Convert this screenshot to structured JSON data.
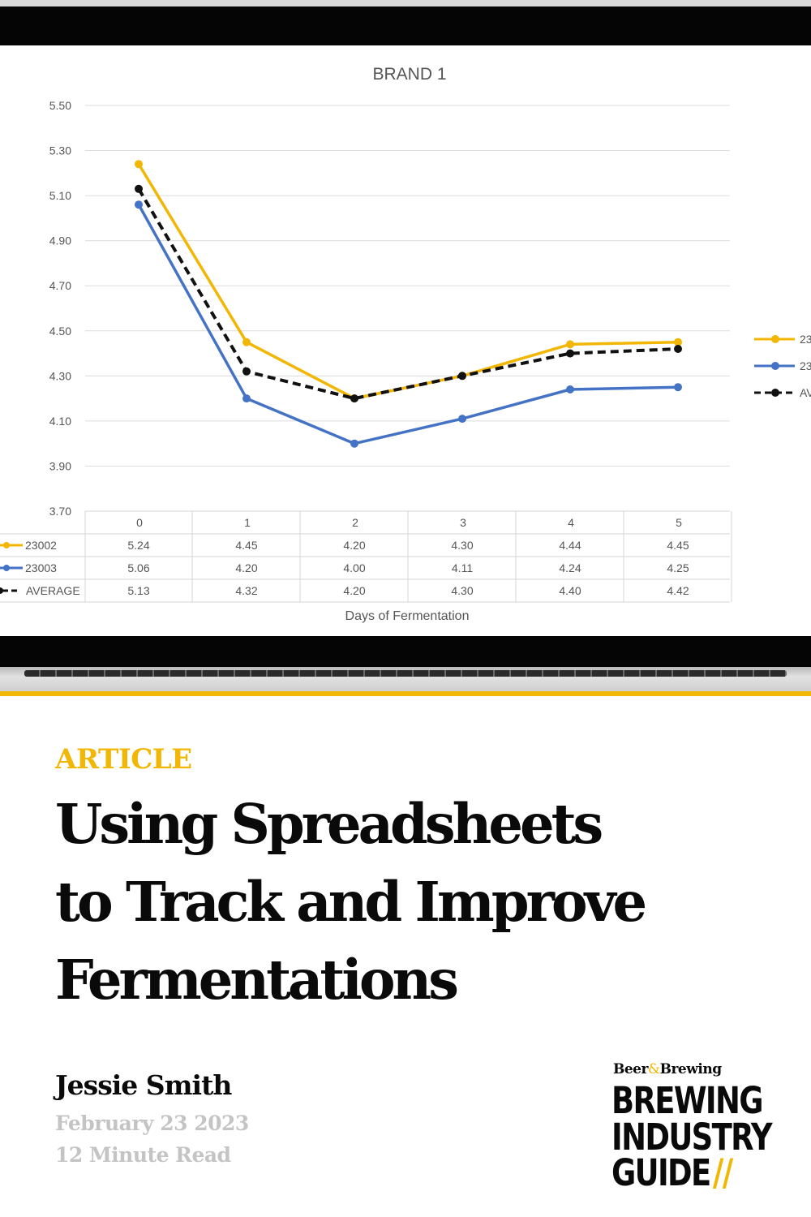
{
  "chart_data": {
    "type": "line",
    "title": "BRAND 1",
    "xlabel": "Days of Fermentation",
    "ylabel": "",
    "categories": [
      "0",
      "1",
      "2",
      "3",
      "4",
      "5"
    ],
    "y_ticks": [
      "5.50",
      "5.30",
      "5.10",
      "4.90",
      "4.70",
      "4.50",
      "4.30",
      "4.10",
      "3.90",
      "3.70"
    ],
    "ylim": [
      3.7,
      5.5
    ],
    "grid": true,
    "legend_position": "right",
    "legend_labels": [
      "23",
      "23",
      "AV"
    ],
    "series": [
      {
        "name": "23002",
        "color": "#f2b705",
        "dashed": false,
        "values": [
          5.24,
          4.45,
          4.2,
          4.3,
          4.44,
          4.45
        ],
        "labels": [
          "5.24",
          "4.45",
          "4.20",
          "4.30",
          "4.44",
          "4.45"
        ]
      },
      {
        "name": "23003",
        "color": "#4472c4",
        "dashed": false,
        "values": [
          5.06,
          4.2,
          4.0,
          4.11,
          4.24,
          4.25
        ],
        "labels": [
          "5.06",
          "4.20",
          "4.00",
          "4.11",
          "4.24",
          "4.25"
        ]
      },
      {
        "name": "AVERAGE",
        "color": "#111111",
        "dashed": true,
        "values": [
          5.13,
          4.32,
          4.2,
          4.3,
          4.4,
          4.42
        ],
        "labels": [
          "5.13",
          "4.32",
          "4.20",
          "4.30",
          "4.40",
          "4.42"
        ]
      }
    ]
  },
  "article": {
    "kicker": "ARTICLE",
    "title_lines": [
      "Using Spreadsheets",
      "to Track and Improve",
      "Fermentations"
    ],
    "author": "Jessie Smith",
    "date": "February 23 2023",
    "read_time": "12 Minute Read"
  },
  "logo": {
    "magazine_beer": "Beer",
    "magazine_amp": "&",
    "magazine_brewing": "Brewing",
    "line1": "BREWING",
    "line2": "INDUSTRY",
    "line3": "GUIDE",
    "slashes": "//"
  },
  "colors": {
    "accent": "#f2b705",
    "text": "#0a0a0a",
    "muted": "#c4c4c4"
  }
}
